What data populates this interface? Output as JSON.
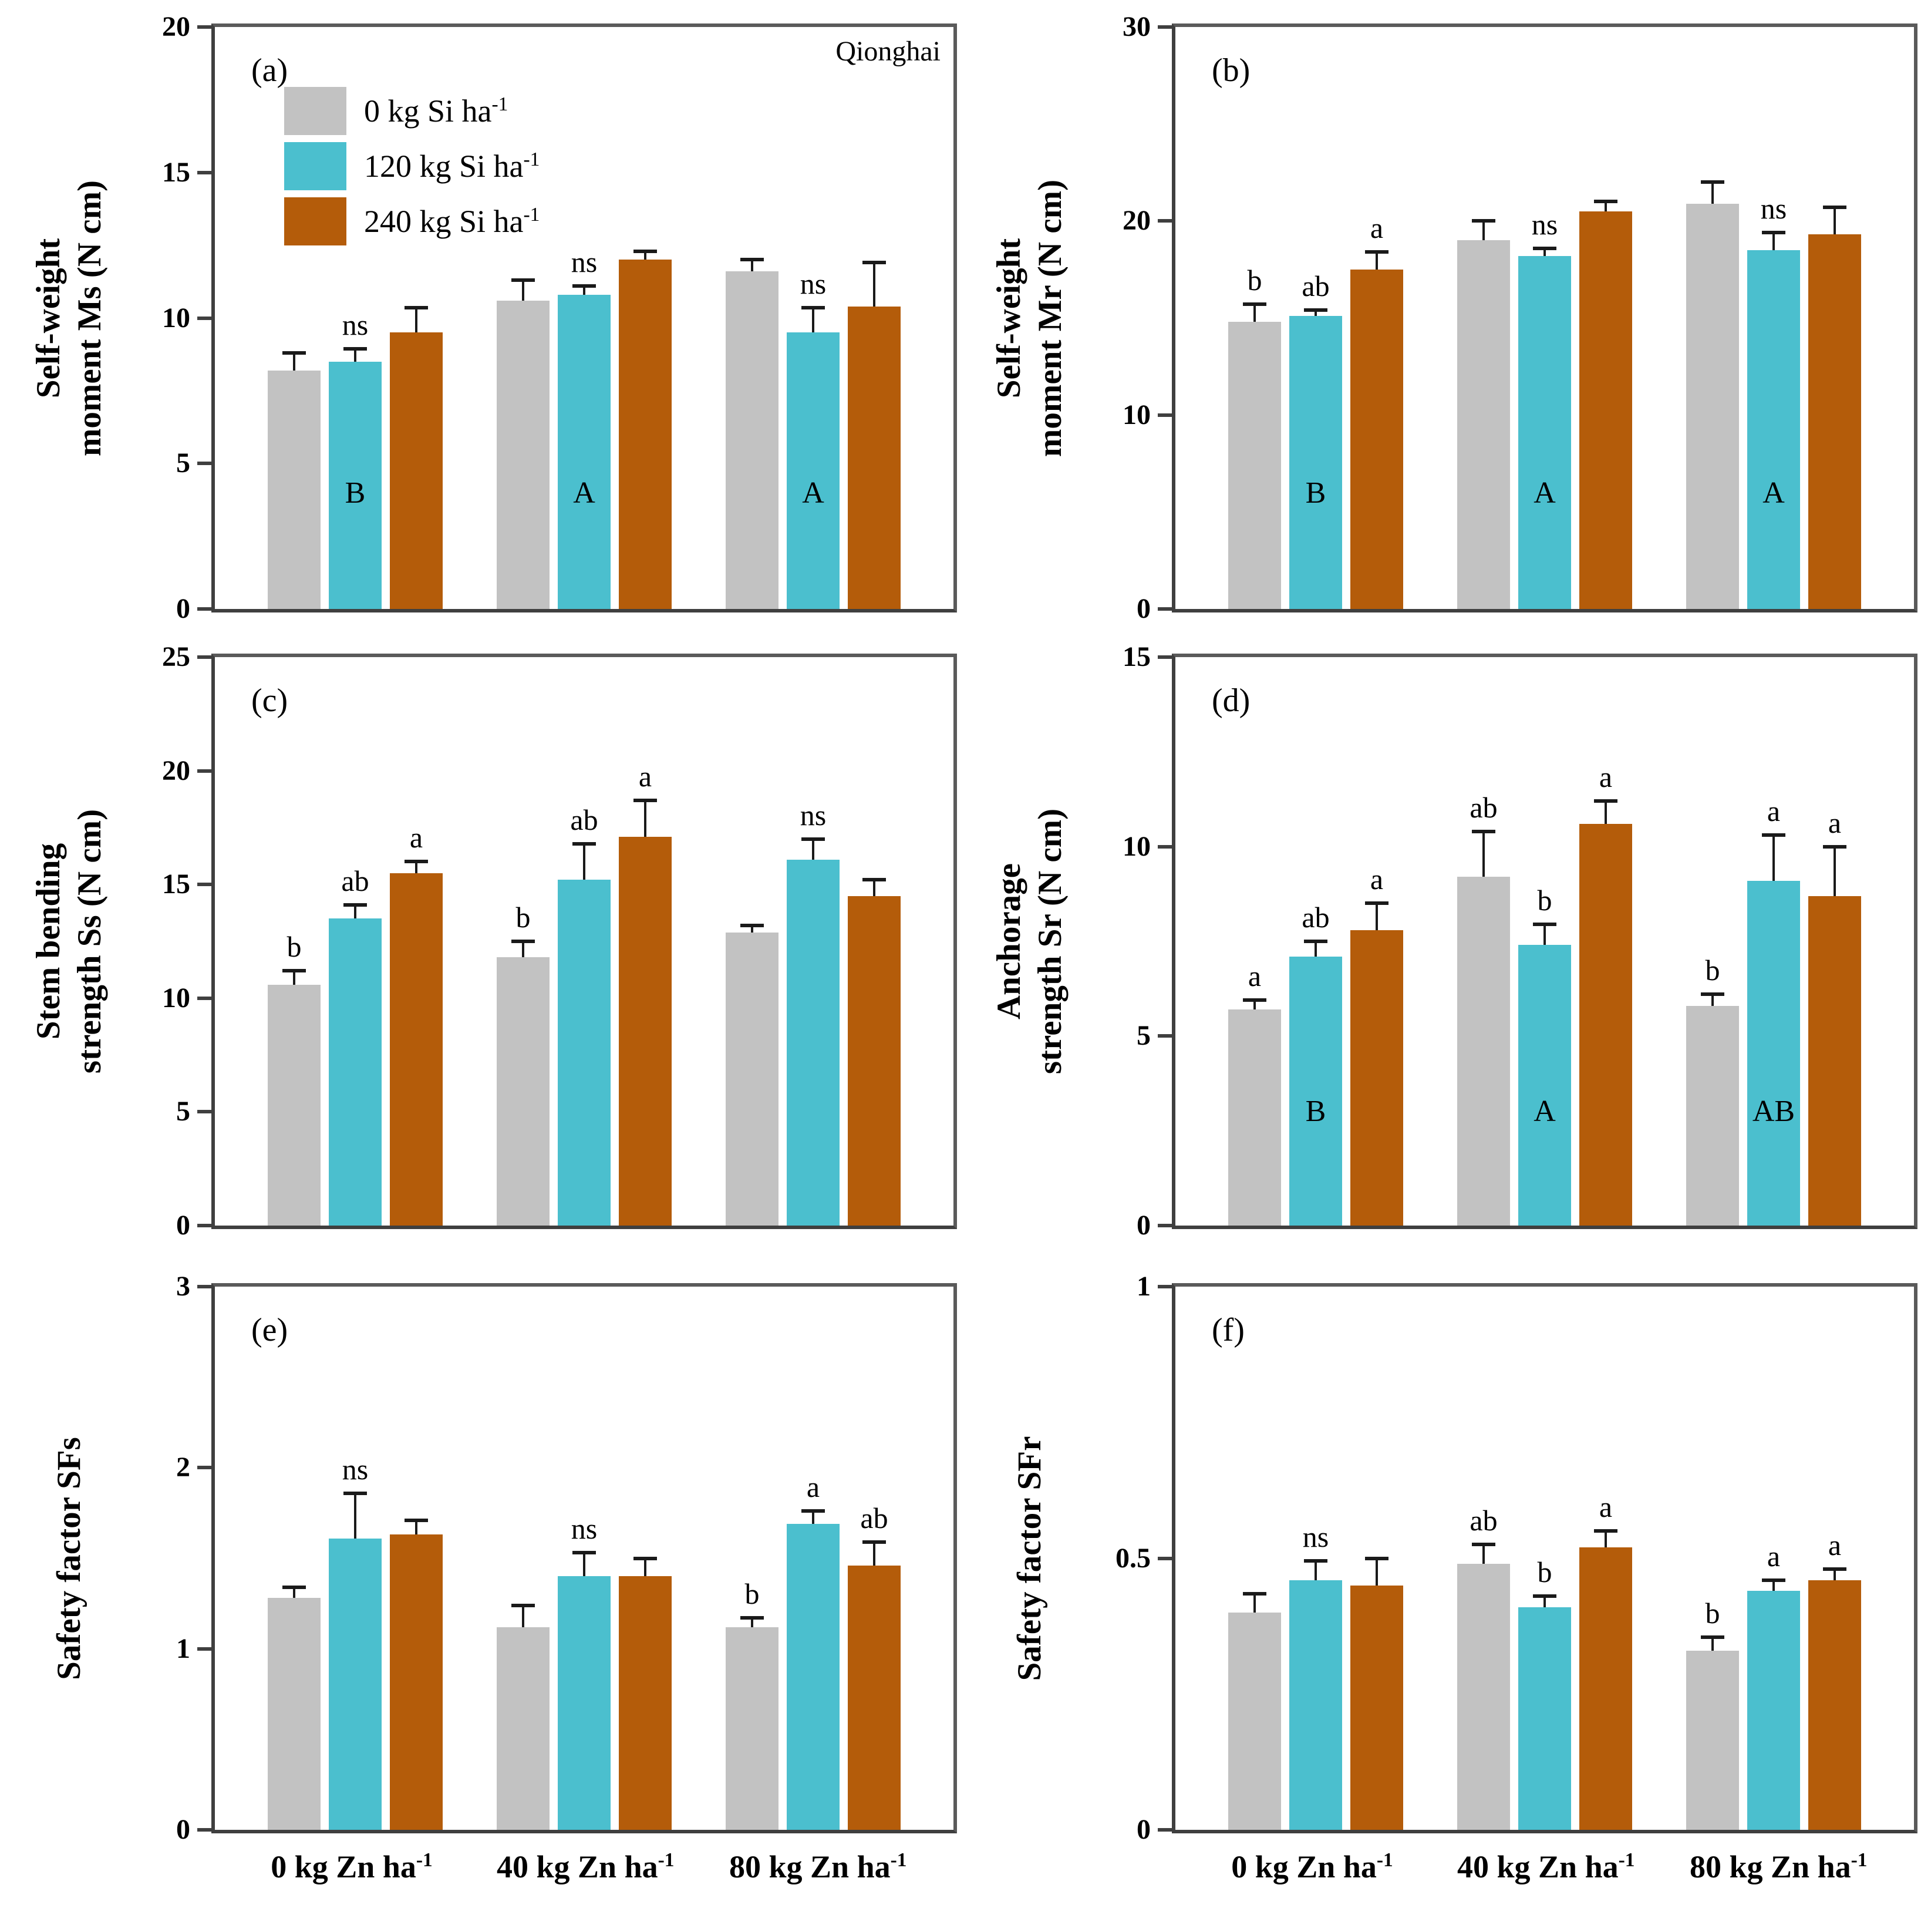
{
  "figure": {
    "corner_annotation": "Qionghai",
    "colors": {
      "series": [
        "#c2c2c2",
        "#4bbfce",
        "#b45c0a"
      ],
      "axis": "#3f3f3f",
      "error": "#1a1a1a"
    },
    "legend": [
      {
        "text": "0 kg Si ha",
        "sup": "-1"
      },
      {
        "text": "120 kg Si ha",
        "sup": "-1"
      },
      {
        "text": "240 kg Si ha",
        "sup": "-1"
      }
    ],
    "x_categories": [
      {
        "text": "0 kg Zn ha",
        "sup": "-1"
      },
      {
        "text": "40 kg Zn ha",
        "sup": "-1"
      },
      {
        "text": "80 kg Zn ha",
        "sup": "-1"
      }
    ]
  },
  "chart_data": [
    {
      "panel_label": "(a)",
      "type": "bar",
      "ylabel_lines": [
        "Self-weight",
        "moment Ms (N cm)"
      ],
      "ylim": [
        0,
        20
      ],
      "yticks": [
        0,
        5,
        10,
        15,
        20
      ],
      "categories": [
        "0 kg Zn ha-1",
        "40 kg Zn ha-1",
        "80 kg Zn ha-1"
      ],
      "show_legend": true,
      "show_x_labels": false,
      "corner_annotation": "Qionghai",
      "series": [
        {
          "name": "0 kg Si ha-1",
          "values": [
            8.2,
            10.6,
            11.6
          ],
          "errors": [
            0.6,
            0.7,
            0.4
          ],
          "letters": [
            "",
            "",
            ""
          ]
        },
        {
          "name": "120 kg Si ha-1",
          "values": [
            8.5,
            10.8,
            9.5
          ],
          "errors": [
            0.45,
            0.3,
            0.85
          ],
          "letters": [
            "ns",
            "ns",
            "ns"
          ],
          "inner_letters": [
            "B",
            "A",
            "A"
          ]
        },
        {
          "name": "240 kg Si ha-1",
          "values": [
            9.5,
            12.0,
            10.4
          ],
          "errors": [
            0.85,
            0.3,
            1.5
          ],
          "letters": [
            "",
            "",
            ""
          ]
        }
      ]
    },
    {
      "panel_label": "(b)",
      "type": "bar",
      "ylabel_lines": [
        "Self-weight",
        "moment Mr (N cm)"
      ],
      "ylim": [
        0,
        30
      ],
      "yticks": [
        0,
        10,
        20,
        30
      ],
      "categories": [
        "0 kg Zn ha-1",
        "40 kg Zn ha-1",
        "80 kg Zn ha-1"
      ],
      "show_legend": false,
      "show_x_labels": false,
      "series": [
        {
          "name": "0 kg Si ha-1",
          "values": [
            14.8,
            19.0,
            20.9
          ],
          "errors": [
            0.9,
            1.0,
            1.1
          ],
          "letters": [
            "b",
            "",
            ""
          ]
        },
        {
          "name": "120 kg Si ha-1",
          "values": [
            15.1,
            18.2,
            18.5
          ],
          "errors": [
            0.3,
            0.4,
            0.9
          ],
          "letters": [
            "ab",
            "ns",
            "ns"
          ],
          "inner_letters": [
            "B",
            "A",
            "A"
          ]
        },
        {
          "name": "240 kg Si ha-1",
          "values": [
            17.5,
            20.5,
            19.3
          ],
          "errors": [
            0.9,
            0.5,
            1.4
          ],
          "letters": [
            "a",
            "",
            ""
          ]
        }
      ]
    },
    {
      "panel_label": "(c)",
      "type": "bar",
      "ylabel_lines": [
        "Stem bending",
        "strength Ss (N cm)"
      ],
      "ylim": [
        0,
        25
      ],
      "yticks": [
        0,
        5,
        10,
        15,
        20,
        25
      ],
      "categories": [
        "0 kg Zn ha-1",
        "40 kg Zn ha-1",
        "80 kg Zn ha-1"
      ],
      "show_legend": false,
      "show_x_labels": false,
      "series": [
        {
          "name": "0 kg Si ha-1",
          "values": [
            10.6,
            11.8,
            12.9
          ],
          "errors": [
            0.6,
            0.7,
            0.3
          ],
          "letters": [
            "b",
            "b",
            ""
          ]
        },
        {
          "name": "120 kg Si ha-1",
          "values": [
            13.5,
            15.2,
            16.1
          ],
          "errors": [
            0.6,
            1.6,
            0.9
          ],
          "letters": [
            "ab",
            "ab",
            "ns"
          ]
        },
        {
          "name": "240 kg Si ha-1",
          "values": [
            15.5,
            17.1,
            14.5
          ],
          "errors": [
            0.5,
            1.6,
            0.7
          ],
          "letters": [
            "a",
            "a",
            ""
          ]
        }
      ]
    },
    {
      "panel_label": "(d)",
      "type": "bar",
      "ylabel_lines": [
        "Anchorage",
        "strength Sr (N cm)"
      ],
      "ylim": [
        0,
        15
      ],
      "yticks": [
        0,
        5,
        10,
        15
      ],
      "categories": [
        "0 kg Zn ha-1",
        "40 kg Zn ha-1",
        "80 kg Zn ha-1"
      ],
      "show_legend": false,
      "show_x_labels": false,
      "series": [
        {
          "name": "0 kg Si ha-1",
          "values": [
            5.7,
            9.2,
            5.8
          ],
          "errors": [
            0.25,
            1.2,
            0.3
          ],
          "letters": [
            "a",
            "ab",
            "b"
          ]
        },
        {
          "name": "120 kg Si ha-1",
          "values": [
            7.1,
            7.4,
            9.1
          ],
          "errors": [
            0.4,
            0.55,
            1.2
          ],
          "letters": [
            "ab",
            "b",
            "a"
          ],
          "inner_letters": [
            "B",
            "A",
            "AB"
          ]
        },
        {
          "name": "240 kg Si ha-1",
          "values": [
            7.8,
            10.6,
            8.7
          ],
          "errors": [
            0.7,
            0.6,
            1.3
          ],
          "letters": [
            "a",
            "a",
            "a"
          ]
        }
      ]
    },
    {
      "panel_label": "(e)",
      "type": "bar",
      "ylabel_lines": [
        "Safety factor SFs"
      ],
      "ylim": [
        0,
        3
      ],
      "yticks": [
        0,
        1,
        2,
        3
      ],
      "categories": [
        "0 kg Zn ha-1",
        "40 kg Zn ha-1",
        "80 kg Zn ha-1"
      ],
      "show_legend": false,
      "show_x_labels": true,
      "series": [
        {
          "name": "0 kg Si ha-1",
          "values": [
            1.28,
            1.12,
            1.12
          ],
          "errors": [
            0.06,
            0.12,
            0.05
          ],
          "letters": [
            "",
            "",
            "b"
          ]
        },
        {
          "name": "120 kg Si ha-1",
          "values": [
            1.61,
            1.4,
            1.69
          ],
          "errors": [
            0.25,
            0.13,
            0.07
          ],
          "letters": [
            "ns",
            "ns",
            "a"
          ]
        },
        {
          "name": "240 kg Si ha-1",
          "values": [
            1.63,
            1.4,
            1.46
          ],
          "errors": [
            0.08,
            0.1,
            0.13
          ],
          "letters": [
            "",
            "",
            "ab"
          ]
        }
      ]
    },
    {
      "panel_label": "(f)",
      "type": "bar",
      "ylabel_lines": [
        "Safety factor SFr"
      ],
      "ylim": [
        0,
        1
      ],
      "yticks": [
        0,
        0.5,
        1
      ],
      "categories": [
        "0 kg Zn ha-1",
        "40 kg Zn ha-1",
        "80 kg Zn ha-1"
      ],
      "show_legend": false,
      "show_x_labels": true,
      "series": [
        {
          "name": "0 kg Si ha-1",
          "values": [
            0.4,
            0.49,
            0.33
          ],
          "errors": [
            0.035,
            0.035,
            0.025
          ],
          "letters": [
            "",
            "ab",
            "b"
          ]
        },
        {
          "name": "120 kg Si ha-1",
          "values": [
            0.46,
            0.41,
            0.44
          ],
          "errors": [
            0.035,
            0.02,
            0.02
          ],
          "letters": [
            "ns",
            "b",
            "a"
          ]
        },
        {
          "name": "240 kg Si ha-1",
          "values": [
            0.45,
            0.52,
            0.46
          ],
          "errors": [
            0.05,
            0.03,
            0.02
          ],
          "letters": [
            "",
            "a",
            "a"
          ]
        }
      ]
    }
  ]
}
